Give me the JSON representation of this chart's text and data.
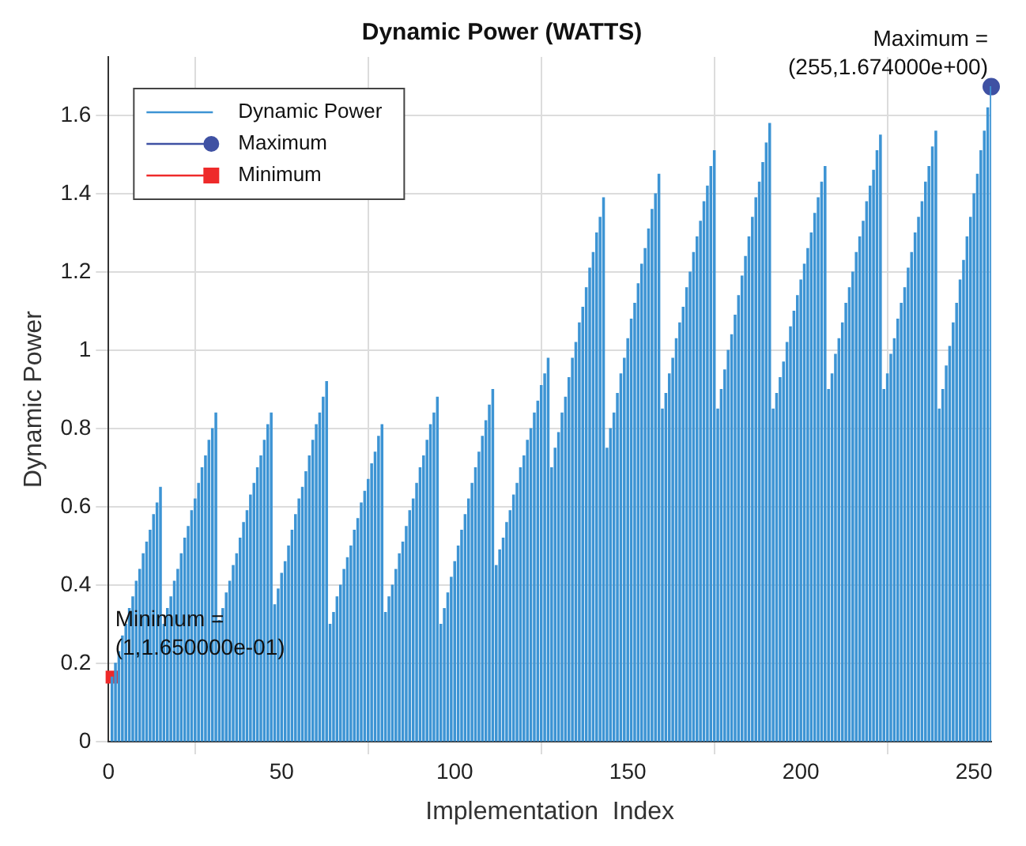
{
  "chart_data": {
    "type": "bar",
    "title": "Dynamic Power (WATTS)",
    "xlabel": "Implementation  Index",
    "ylabel": "Dynamic Power",
    "xlim": [
      0,
      255
    ],
    "xticks": [
      0,
      50,
      100,
      150,
      200,
      250
    ],
    "ylim": [
      0,
      1.75
    ],
    "yticks": [
      0,
      0.2,
      0.4,
      0.6,
      0.8,
      1,
      1.2,
      1.4,
      1.6
    ],
    "grid": true,
    "legend": "top left",
    "annotations": [
      {
        "text": "Maximum =\n(255,1.674000e+00)",
        "x": 255,
        "y": 1.674
      },
      {
        "text": "Minimum =\n(1,1.650000e-01)",
        "x": 1,
        "y": 0.165
      }
    ],
    "series": [
      {
        "name": "Dynamic Power",
        "color": "#3d94d4",
        "x": [
          1,
          2,
          3,
          4,
          5,
          6,
          7,
          8,
          9,
          10,
          11,
          12,
          13,
          14,
          15,
          16,
          17,
          18,
          19,
          20,
          21,
          22,
          23,
          24,
          25,
          26,
          27,
          28,
          29,
          30,
          31,
          32,
          33,
          34,
          35,
          36,
          37,
          38,
          39,
          40,
          41,
          42,
          43,
          44,
          45,
          46,
          47,
          48,
          49,
          50,
          51,
          52,
          53,
          54,
          55,
          56,
          57,
          58,
          59,
          60,
          61,
          62,
          63,
          64,
          65,
          66,
          67,
          68,
          69,
          70,
          71,
          72,
          73,
          74,
          75,
          76,
          77,
          78,
          79,
          80,
          81,
          82,
          83,
          84,
          85,
          86,
          87,
          88,
          89,
          90,
          91,
          92,
          93,
          94,
          95,
          96,
          97,
          98,
          99,
          100,
          101,
          102,
          103,
          104,
          105,
          106,
          107,
          108,
          109,
          110,
          111,
          112,
          113,
          114,
          115,
          116,
          117,
          118,
          119,
          120,
          121,
          122,
          123,
          124,
          125,
          126,
          127,
          128,
          129,
          130,
          131,
          132,
          133,
          134,
          135,
          136,
          137,
          138,
          139,
          140,
          141,
          142,
          143,
          144,
          145,
          146,
          147,
          148,
          149,
          150,
          151,
          152,
          153,
          154,
          155,
          156,
          157,
          158,
          159,
          160,
          161,
          162,
          163,
          164,
          165,
          166,
          167,
          168,
          169,
          170,
          171,
          172,
          173,
          174,
          175,
          176,
          177,
          178,
          179,
          180,
          181,
          182,
          183,
          184,
          185,
          186,
          187,
          188,
          189,
          190,
          191,
          192,
          193,
          194,
          195,
          196,
          197,
          198,
          199,
          200,
          201,
          202,
          203,
          204,
          205,
          206,
          207,
          208,
          209,
          210,
          211,
          212,
          213,
          214,
          215,
          216,
          217,
          218,
          219,
          220,
          221,
          222,
          223,
          224,
          225,
          226,
          227,
          228,
          229,
          230,
          231,
          232,
          233,
          234,
          235,
          236,
          237,
          238,
          239,
          240,
          241,
          242,
          243,
          244,
          245,
          246,
          247,
          248,
          249,
          250,
          251,
          252,
          253,
          254,
          255
        ],
        "values": [
          0.165,
          0.2,
          0.23,
          0.27,
          0.3,
          0.34,
          0.37,
          0.41,
          0.44,
          0.48,
          0.51,
          0.54,
          0.58,
          0.61,
          0.65,
          0.3,
          0.34,
          0.37,
          0.41,
          0.44,
          0.48,
          0.52,
          0.55,
          0.59,
          0.62,
          0.66,
          0.7,
          0.73,
          0.77,
          0.8,
          0.84,
          0.31,
          0.34,
          0.38,
          0.41,
          0.45,
          0.48,
          0.52,
          0.56,
          0.59,
          0.63,
          0.66,
          0.7,
          0.73,
          0.77,
          0.81,
          0.84,
          0.35,
          0.39,
          0.43,
          0.46,
          0.5,
          0.54,
          0.58,
          0.62,
          0.65,
          0.69,
          0.73,
          0.77,
          0.81,
          0.84,
          0.88,
          0.92,
          0.3,
          0.33,
          0.37,
          0.4,
          0.44,
          0.47,
          0.5,
          0.54,
          0.57,
          0.61,
          0.64,
          0.67,
          0.71,
          0.74,
          0.78,
          0.81,
          0.33,
          0.37,
          0.4,
          0.44,
          0.48,
          0.51,
          0.55,
          0.59,
          0.62,
          0.66,
          0.7,
          0.73,
          0.77,
          0.81,
          0.84,
          0.88,
          0.3,
          0.34,
          0.38,
          0.42,
          0.46,
          0.5,
          0.54,
          0.58,
          0.62,
          0.66,
          0.7,
          0.74,
          0.78,
          0.82,
          0.86,
          0.9,
          0.45,
          0.49,
          0.52,
          0.56,
          0.59,
          0.63,
          0.66,
          0.7,
          0.73,
          0.77,
          0.8,
          0.84,
          0.87,
          0.91,
          0.94,
          0.98,
          0.7,
          0.75,
          0.79,
          0.84,
          0.88,
          0.93,
          0.98,
          1.02,
          1.07,
          1.11,
          1.16,
          1.21,
          1.25,
          1.3,
          1.34,
          1.39,
          0.75,
          0.8,
          0.84,
          0.89,
          0.94,
          0.98,
          1.03,
          1.08,
          1.12,
          1.17,
          1.22,
          1.26,
          1.31,
          1.36,
          1.4,
          1.45,
          0.85,
          0.89,
          0.94,
          0.98,
          1.03,
          1.07,
          1.11,
          1.16,
          1.2,
          1.25,
          1.29,
          1.33,
          1.38,
          1.42,
          1.47,
          1.51,
          0.85,
          0.9,
          0.95,
          1.0,
          1.04,
          1.09,
          1.14,
          1.19,
          1.24,
          1.29,
          1.34,
          1.39,
          1.43,
          1.48,
          1.53,
          1.58,
          0.85,
          0.89,
          0.93,
          0.97,
          1.02,
          1.06,
          1.1,
          1.14,
          1.18,
          1.22,
          1.26,
          1.3,
          1.35,
          1.39,
          1.43,
          1.47,
          0.9,
          0.94,
          0.99,
          1.03,
          1.07,
          1.12,
          1.16,
          1.2,
          1.25,
          1.29,
          1.33,
          1.38,
          1.42,
          1.46,
          1.51,
          1.55,
          0.9,
          0.94,
          0.99,
          1.03,
          1.08,
          1.12,
          1.16,
          1.21,
          1.25,
          1.3,
          1.34,
          1.38,
          1.43,
          1.47,
          1.52,
          1.56,
          0.85,
          0.9,
          0.96,
          1.01,
          1.07,
          1.12,
          1.18,
          1.23,
          1.29,
          1.34,
          1.4,
          1.45,
          1.51,
          1.56,
          1.62,
          1.674
        ]
      },
      {
        "name": "Maximum",
        "type": "scatter",
        "marker": "circle",
        "color": "#3f51a3",
        "x": [
          255
        ],
        "values": [
          1.674
        ]
      },
      {
        "name": "Minimum",
        "type": "scatter",
        "marker": "square",
        "color": "#ee2a2a",
        "x": [
          1
        ],
        "values": [
          0.165
        ]
      }
    ]
  }
}
